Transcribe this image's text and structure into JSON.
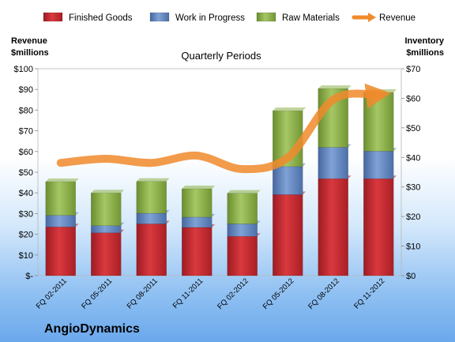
{
  "chart_data": {
    "type": "bar",
    "title": "Quarterly Periods",
    "company": "AngioDynamics",
    "left_axis_label": [
      "Revenue",
      "$millions"
    ],
    "right_axis_label": [
      "Inventory",
      "$millions"
    ],
    "categories": [
      "FQ 02-2011",
      "FQ 05-2011",
      "FQ 08-2011",
      "FQ 11-2011",
      "FQ 02-2012",
      "FQ 05-2012",
      "FQ 08-2012",
      "FQ 11-2012"
    ],
    "stacked": true,
    "left_axis": {
      "min": 0,
      "max": 100,
      "step": 10,
      "ticks": [
        "$-",
        "$10",
        "$20",
        "$30",
        "$40",
        "$50",
        "$60",
        "$70",
        "$80",
        "$90",
        "$100"
      ]
    },
    "right_axis": {
      "min": 0,
      "max": 70,
      "step": 10,
      "ticks": [
        "$0",
        "$10",
        "$20",
        "$30",
        "$40",
        "$50",
        "$60",
        "$70"
      ]
    },
    "series": [
      {
        "name": "Finished Goods",
        "axis": "right",
        "kind": "bar",
        "color": "#c0282d",
        "values": [
          16.5,
          14.5,
          17.5,
          16.3,
          13.3,
          27.4,
          32.8,
          32.8
        ]
      },
      {
        "name": "Work in Progress",
        "axis": "right",
        "kind": "bar",
        "color": "#5f84bf",
        "values": [
          3.9,
          2.4,
          3.6,
          3.5,
          4.2,
          9.5,
          10.6,
          9.3
        ]
      },
      {
        "name": "Raw Materials",
        "axis": "right",
        "kind": "bar",
        "color": "#8db048",
        "values": [
          11.4,
          11.1,
          10.8,
          9.6,
          10.4,
          18.9,
          19.9,
          19.9
        ]
      },
      {
        "name": "Revenue",
        "axis": "left",
        "kind": "line",
        "color": "#f08a2c",
        "values": [
          54.5,
          56.5,
          54.5,
          58.0,
          51.5,
          57.0,
          85.0,
          87.5
        ]
      }
    ],
    "legend_position": "top"
  }
}
